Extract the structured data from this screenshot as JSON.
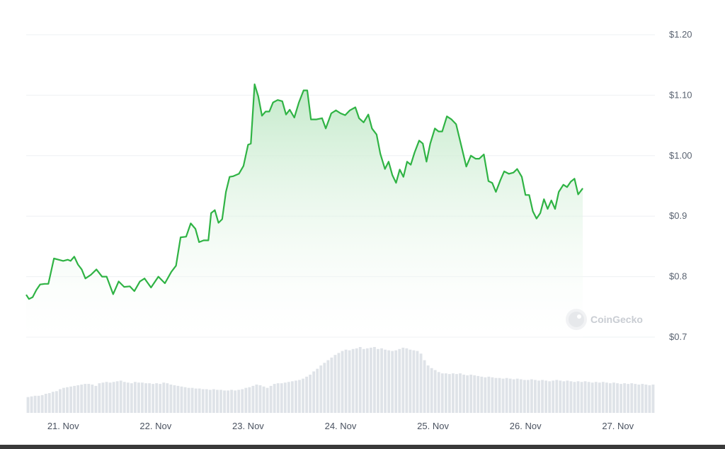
{
  "chart_data": {
    "type": "area",
    "title": "",
    "xlabel": "",
    "ylabel": "",
    "ylim": [
      0.7,
      1.2
    ],
    "y_ticks": [
      "$0.7",
      "$0.8",
      "$0.9",
      "$1.00",
      "$1.10",
      "$1.20"
    ],
    "y_tick_values": [
      0.7,
      0.8,
      0.9,
      1.0,
      1.1,
      1.2
    ],
    "x_range": [
      20.6,
      27.4
    ],
    "x_ticks": [
      "21. Nov",
      "22. Nov",
      "23. Nov",
      "24. Nov",
      "25. Nov",
      "26. Nov",
      "27. Nov"
    ],
    "x_tick_values": [
      21,
      22,
      23,
      24,
      25,
      26,
      27
    ],
    "grid": true,
    "colors": {
      "line": "#2fb344",
      "fill_top": "#bfe8c6",
      "volume": "#dfe3e8"
    },
    "series": [
      {
        "values": [
          [
            20.6,
            0.77
          ],
          [
            20.63,
            0.763
          ],
          [
            20.67,
            0.766
          ],
          [
            20.71,
            0.778
          ],
          [
            20.75,
            0.787
          ],
          [
            20.8,
            0.788
          ],
          [
            20.84,
            0.788
          ],
          [
            20.9,
            0.83
          ],
          [
            20.95,
            0.828
          ],
          [
            21.0,
            0.826
          ],
          [
            21.05,
            0.828
          ],
          [
            21.08,
            0.826
          ],
          [
            21.12,
            0.833
          ],
          [
            21.16,
            0.82
          ],
          [
            21.2,
            0.812
          ],
          [
            21.24,
            0.797
          ],
          [
            21.3,
            0.803
          ],
          [
            21.36,
            0.812
          ],
          [
            21.42,
            0.8
          ],
          [
            21.47,
            0.8
          ],
          [
            21.54,
            0.771
          ],
          [
            21.6,
            0.792
          ],
          [
            21.66,
            0.783
          ],
          [
            21.72,
            0.784
          ],
          [
            21.77,
            0.776
          ],
          [
            21.83,
            0.792
          ],
          [
            21.88,
            0.797
          ],
          [
            21.95,
            0.782
          ],
          [
            22.03,
            0.8
          ],
          [
            22.1,
            0.789
          ],
          [
            22.17,
            0.808
          ],
          [
            22.22,
            0.818
          ],
          [
            22.27,
            0.865
          ],
          [
            22.33,
            0.866
          ],
          [
            22.38,
            0.888
          ],
          [
            22.43,
            0.879
          ],
          [
            22.47,
            0.857
          ],
          [
            22.52,
            0.86
          ],
          [
            22.57,
            0.86
          ],
          [
            22.6,
            0.905
          ],
          [
            22.64,
            0.91
          ],
          [
            22.68,
            0.889
          ],
          [
            22.72,
            0.895
          ],
          [
            22.76,
            0.94
          ],
          [
            22.8,
            0.965
          ],
          [
            22.84,
            0.966
          ],
          [
            22.9,
            0.97
          ],
          [
            22.95,
            0.983
          ],
          [
            23.0,
            1.018
          ],
          [
            23.03,
            1.02
          ],
          [
            23.07,
            1.118
          ],
          [
            23.11,
            1.098
          ],
          [
            23.15,
            1.066
          ],
          [
            23.19,
            1.073
          ],
          [
            23.23,
            1.073
          ],
          [
            23.27,
            1.088
          ],
          [
            23.32,
            1.092
          ],
          [
            23.37,
            1.09
          ],
          [
            23.41,
            1.068
          ],
          [
            23.45,
            1.076
          ],
          [
            23.5,
            1.063
          ],
          [
            23.55,
            1.088
          ],
          [
            23.6,
            1.108
          ],
          [
            23.64,
            1.108
          ],
          [
            23.68,
            1.06
          ],
          [
            23.74,
            1.06
          ],
          [
            23.8,
            1.062
          ],
          [
            23.84,
            1.045
          ],
          [
            23.9,
            1.07
          ],
          [
            23.95,
            1.075
          ],
          [
            24.0,
            1.07
          ],
          [
            24.05,
            1.067
          ],
          [
            24.1,
            1.075
          ],
          [
            24.16,
            1.08
          ],
          [
            24.2,
            1.062
          ],
          [
            24.25,
            1.055
          ],
          [
            24.3,
            1.068
          ],
          [
            24.34,
            1.045
          ],
          [
            24.39,
            1.035
          ],
          [
            24.43,
            1.003
          ],
          [
            24.48,
            0.978
          ],
          [
            24.52,
            0.99
          ],
          [
            24.56,
            0.968
          ],
          [
            24.6,
            0.955
          ],
          [
            24.64,
            0.977
          ],
          [
            24.68,
            0.965
          ],
          [
            24.72,
            0.99
          ],
          [
            24.76,
            0.985
          ],
          [
            24.8,
            1.005
          ],
          [
            24.85,
            1.025
          ],
          [
            24.89,
            1.02
          ],
          [
            24.93,
            0.99
          ],
          [
            24.97,
            1.02
          ],
          [
            25.02,
            1.045
          ],
          [
            25.06,
            1.04
          ],
          [
            25.1,
            1.04
          ],
          [
            25.15,
            1.065
          ],
          [
            25.2,
            1.06
          ],
          [
            25.25,
            1.052
          ],
          [
            25.3,
            1.02
          ],
          [
            25.36,
            0.982
          ],
          [
            25.41,
            1.0
          ],
          [
            25.46,
            0.995
          ],
          [
            25.5,
            0.995
          ],
          [
            25.55,
            1.002
          ],
          [
            25.6,
            0.958
          ],
          [
            25.64,
            0.955
          ],
          [
            25.68,
            0.94
          ],
          [
            25.73,
            0.96
          ],
          [
            25.77,
            0.974
          ],
          [
            25.82,
            0.97
          ],
          [
            25.87,
            0.972
          ],
          [
            25.91,
            0.978
          ],
          [
            25.96,
            0.965
          ],
          [
            26.0,
            0.935
          ],
          [
            26.04,
            0.935
          ],
          [
            26.08,
            0.908
          ],
          [
            26.12,
            0.896
          ],
          [
            26.16,
            0.905
          ],
          [
            26.2,
            0.928
          ],
          [
            26.24,
            0.912
          ],
          [
            26.28,
            0.926
          ],
          [
            26.32,
            0.912
          ],
          [
            26.36,
            0.94
          ],
          [
            26.41,
            0.952
          ],
          [
            26.45,
            0.948
          ],
          [
            26.49,
            0.957
          ],
          [
            26.53,
            0.962
          ],
          [
            26.57,
            0.936
          ],
          [
            26.62,
            0.946
          ]
        ]
      }
    ],
    "volume": [
      0.24,
      0.25,
      0.26,
      0.26,
      0.27,
      0.29,
      0.3,
      0.32,
      0.33,
      0.36,
      0.38,
      0.39,
      0.4,
      0.41,
      0.42,
      0.43,
      0.44,
      0.44,
      0.43,
      0.41,
      0.45,
      0.46,
      0.47,
      0.46,
      0.47,
      0.48,
      0.49,
      0.47,
      0.46,
      0.45,
      0.47,
      0.46,
      0.46,
      0.45,
      0.45,
      0.44,
      0.45,
      0.44,
      0.46,
      0.45,
      0.43,
      0.42,
      0.41,
      0.4,
      0.39,
      0.38,
      0.38,
      0.37,
      0.37,
      0.36,
      0.36,
      0.35,
      0.36,
      0.35,
      0.35,
      0.34,
      0.34,
      0.35,
      0.34,
      0.35,
      0.36,
      0.38,
      0.39,
      0.41,
      0.43,
      0.42,
      0.4,
      0.38,
      0.41,
      0.44,
      0.45,
      0.45,
      0.46,
      0.47,
      0.48,
      0.49,
      0.5,
      0.52,
      0.55,
      0.58,
      0.63,
      0.67,
      0.72,
      0.76,
      0.8,
      0.84,
      0.88,
      0.91,
      0.94,
      0.96,
      0.95,
      0.97,
      0.98,
      1.0,
      0.97,
      0.98,
      0.99,
      1.0,
      0.97,
      0.98,
      0.96,
      0.95,
      0.94,
      0.95,
      0.97,
      0.99,
      0.98,
      0.96,
      0.95,
      0.94,
      0.9,
      0.8,
      0.72,
      0.68,
      0.65,
      0.62,
      0.6,
      0.6,
      0.59,
      0.6,
      0.59,
      0.6,
      0.58,
      0.57,
      0.58,
      0.57,
      0.56,
      0.55,
      0.54,
      0.55,
      0.54,
      0.53,
      0.53,
      0.52,
      0.53,
      0.52,
      0.51,
      0.52,
      0.51,
      0.5,
      0.5,
      0.51,
      0.5,
      0.49,
      0.5,
      0.49,
      0.48,
      0.49,
      0.5,
      0.49,
      0.48,
      0.49,
      0.48,
      0.47,
      0.48,
      0.47,
      0.48,
      0.47,
      0.46,
      0.47,
      0.46,
      0.47,
      0.46,
      0.45,
      0.46,
      0.45,
      0.44,
      0.45,
      0.44,
      0.45,
      0.44,
      0.43,
      0.44,
      0.43,
      0.42,
      0.43
    ],
    "watermark": "CoinGecko"
  }
}
